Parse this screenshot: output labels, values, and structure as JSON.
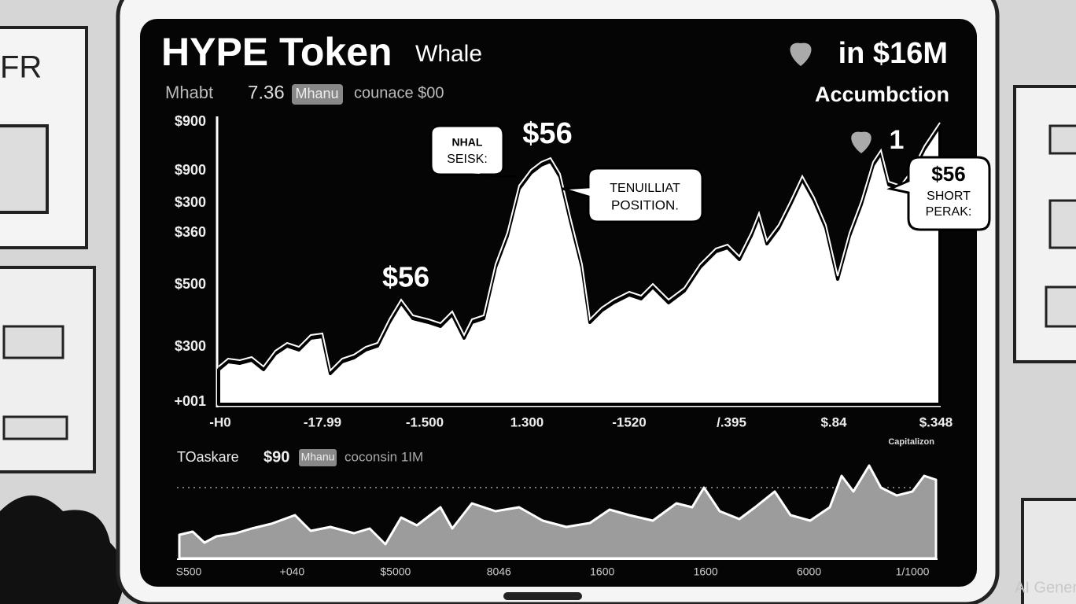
{
  "background": {
    "panel_text": "FR"
  },
  "header": {
    "title": "HYPE Token",
    "subtitle": "Whale",
    "badge": "in $16M",
    "caption": "Accumbction"
  },
  "stats": {
    "label": "Mhabt",
    "value": "7.36",
    "chip": "Mhanu",
    "extra": "counace $00"
  },
  "main_chart": {
    "y_labels": [
      "$900",
      "$900",
      "$300",
      "$360",
      "$500",
      "$300",
      "+001"
    ],
    "x_labels": [
      "-H0",
      "-17.99",
      "-1.500",
      "1.300",
      "-1520",
      "/.395",
      "$.84",
      "$.348"
    ],
    "peak_labels": [
      "$56",
      "$56"
    ],
    "marker": "1",
    "bubbles": [
      {
        "lines": [
          "NHAL",
          "SEISK:"
        ]
      },
      {
        "lines": [
          "TENUILLIAT",
          "POSITION."
        ]
      },
      {
        "lines": [
          "$56",
          "SHORT",
          "PERAK:"
        ]
      }
    ],
    "corner_label": "Capitalizon"
  },
  "sub_chart": {
    "label": "TOaskare",
    "value": "$90",
    "chip": "Mhanu",
    "extra": "coconsin 1IM",
    "x_labels": [
      "S500",
      "+040",
      "$5000",
      "8046",
      "1600",
      "1600",
      "6000",
      "1/1000"
    ]
  },
  "watermark": "AI Generated"
}
